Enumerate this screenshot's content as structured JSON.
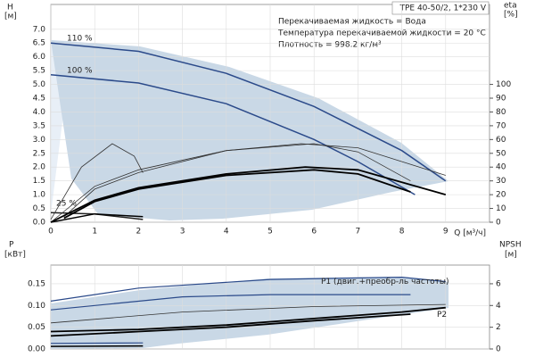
{
  "chart_data": [
    {
      "type": "line",
      "title": "TPE 40-50/2, 1*230 V",
      "notes": [
        "Перекачиваемая жидкость = Вода",
        "Температура перекачиваемой жидкости = 20 °C",
        "Плотность = 998.2 кг/м³"
      ],
      "ylabel": [
        "H",
        "[м]"
      ],
      "y2label": [
        "eta",
        "[%]"
      ],
      "xlabel": "Q [м³/ч]",
      "xlim": [
        0,
        10
      ],
      "ylim": [
        0,
        7.9
      ],
      "y2lim": [
        0,
        158
      ],
      "grid": true,
      "xticks": [
        0,
        1,
        2,
        3,
        4,
        5,
        6,
        7,
        8,
        9
      ],
      "yticks": [
        {
          "value": 0,
          "label": "0.0"
        },
        {
          "value": 0.5,
          "label": "0.5"
        },
        {
          "value": 1,
          "label": "1.0"
        },
        {
          "value": 1.5,
          "label": "1.5"
        },
        {
          "value": 2,
          "label": "2.0"
        },
        {
          "value": 2.5,
          "label": "2.5"
        },
        {
          "value": 3,
          "label": "3.0"
        },
        {
          "value": 3.5,
          "label": "3.5"
        },
        {
          "value": 4,
          "label": "4.0"
        },
        {
          "value": 4.5,
          "label": "4.5"
        },
        {
          "value": 5,
          "label": "5.0"
        },
        {
          "value": 5.5,
          "label": "5.5"
        },
        {
          "value": 6,
          "label": "6.0"
        },
        {
          "value": 6.5,
          "label": "6.5"
        },
        {
          "value": 7,
          "label": "7.0"
        }
      ],
      "y2ticks": [
        0,
        10,
        20,
        30,
        40,
        50,
        60,
        70,
        80,
        90,
        100
      ],
      "series": [
        {
          "name": "110 %",
          "color": "#2b4a8a",
          "width": 1.5,
          "x": [
            0,
            2,
            4,
            6,
            8,
            9
          ],
          "values": [
            6.5,
            6.2,
            5.4,
            4.2,
            2.6,
            1.5
          ]
        },
        {
          "name": "100 %",
          "color": "#2b4a8a",
          "width": 1.5,
          "x": [
            0,
            2,
            4,
            6,
            7,
            8.3
          ],
          "values": [
            5.35,
            5.05,
            4.3,
            3.0,
            2.2,
            1.0
          ]
        },
        {
          "name": "25 %",
          "color": "#222222",
          "width": 1.5,
          "x": [
            0,
            1,
            2.1
          ],
          "values": [
            0.35,
            0.3,
            0.1
          ]
        },
        {
          "axis": "y2",
          "color": "#333333",
          "width": 0.8,
          "x": [
            0,
            1,
            2,
            4,
            5.7,
            7,
            9
          ],
          "values": [
            0,
            26,
            38,
            52,
            57,
            54,
            34
          ]
        },
        {
          "axis": "y2",
          "color": "#333333",
          "width": 0.8,
          "x": [
            0.3,
            1,
            2,
            4,
            6,
            7,
            8.2
          ],
          "values": [
            4,
            24,
            36,
            52,
            57,
            51,
            30
          ]
        },
        {
          "axis": "y2",
          "color": "#000000",
          "width": 1.8,
          "x": [
            0,
            1,
            2,
            4,
            5.8,
            7,
            9
          ],
          "values": [
            0,
            16,
            25,
            35,
            40,
            38,
            20
          ]
        },
        {
          "axis": "y2",
          "color": "#000000",
          "width": 1.8,
          "x": [
            0.3,
            1,
            2,
            4,
            6,
            7,
            8.2
          ],
          "values": [
            3,
            15,
            24,
            34,
            38,
            35,
            22
          ]
        },
        {
          "axis": "y2",
          "color": "#333333",
          "width": 0.8,
          "x": [
            0,
            0.7,
            1.4,
            1.9,
            2.1
          ],
          "values": [
            2,
            40,
            57,
            48,
            36
          ]
        },
        {
          "axis": "y2",
          "color": "#000000",
          "width": 1.5,
          "x": [
            0,
            1,
            2.1
          ],
          "values": [
            0,
            6,
            4
          ]
        }
      ]
    },
    {
      "type": "line",
      "ylabel": [
        "P",
        "[кВт]"
      ],
      "y2label": [
        "NPSH",
        "[м]"
      ],
      "xlim": [
        0,
        10
      ],
      "ylim": [
        0,
        0.193
      ],
      "y2lim": [
        0,
        7.72
      ],
      "grid": true,
      "xticks": [
        0,
        1,
        2,
        3,
        4,
        5,
        6,
        7,
        8,
        9
      ],
      "yticks": [
        {
          "value": 0,
          "label": "0.00"
        },
        {
          "value": 0.05,
          "label": "0.05"
        },
        {
          "value": 0.1,
          "label": "0.10"
        },
        {
          "value": 0.15,
          "label": "0.15"
        }
      ],
      "y2ticks": [
        0,
        2,
        4,
        6
      ],
      "series": [
        {
          "name": "P1 (двиг.+преобр-ль частоты)",
          "color": "#2b4a8a",
          "width": 1.2,
          "x": [
            0,
            2,
            5,
            8,
            9
          ],
          "values": [
            0.11,
            0.14,
            0.16,
            0.165,
            0.155
          ]
        },
        {
          "color": "#2b4a8a",
          "width": 1.2,
          "x": [
            0,
            3,
            5,
            8.2
          ],
          "values": [
            0.09,
            0.12,
            0.125,
            0.125
          ]
        },
        {
          "name": "P2",
          "color": "#000000",
          "width": 1.8,
          "x": [
            0,
            2,
            4,
            6,
            8,
            9
          ],
          "values": [
            0.04,
            0.045,
            0.055,
            0.07,
            0.085,
            0.095
          ]
        },
        {
          "color": "#000000",
          "width": 1.8,
          "x": [
            0,
            2,
            4,
            6,
            8.2
          ],
          "values": [
            0.03,
            0.04,
            0.05,
            0.065,
            0.08
          ]
        },
        {
          "axis": "y2",
          "color": "#333333",
          "width": 0.8,
          "x": [
            0,
            3,
            6,
            9
          ],
          "values": [
            2.4,
            3.4,
            3.9,
            4.1
          ]
        },
        {
          "color": "#2b4a8a",
          "width": 1.2,
          "x": [
            0,
            2.1
          ],
          "values": [
            0.013,
            0.014
          ]
        },
        {
          "color": "#000000",
          "width": 1.5,
          "x": [
            0,
            2.1
          ],
          "values": [
            0.006,
            0.007
          ]
        }
      ]
    }
  ]
}
